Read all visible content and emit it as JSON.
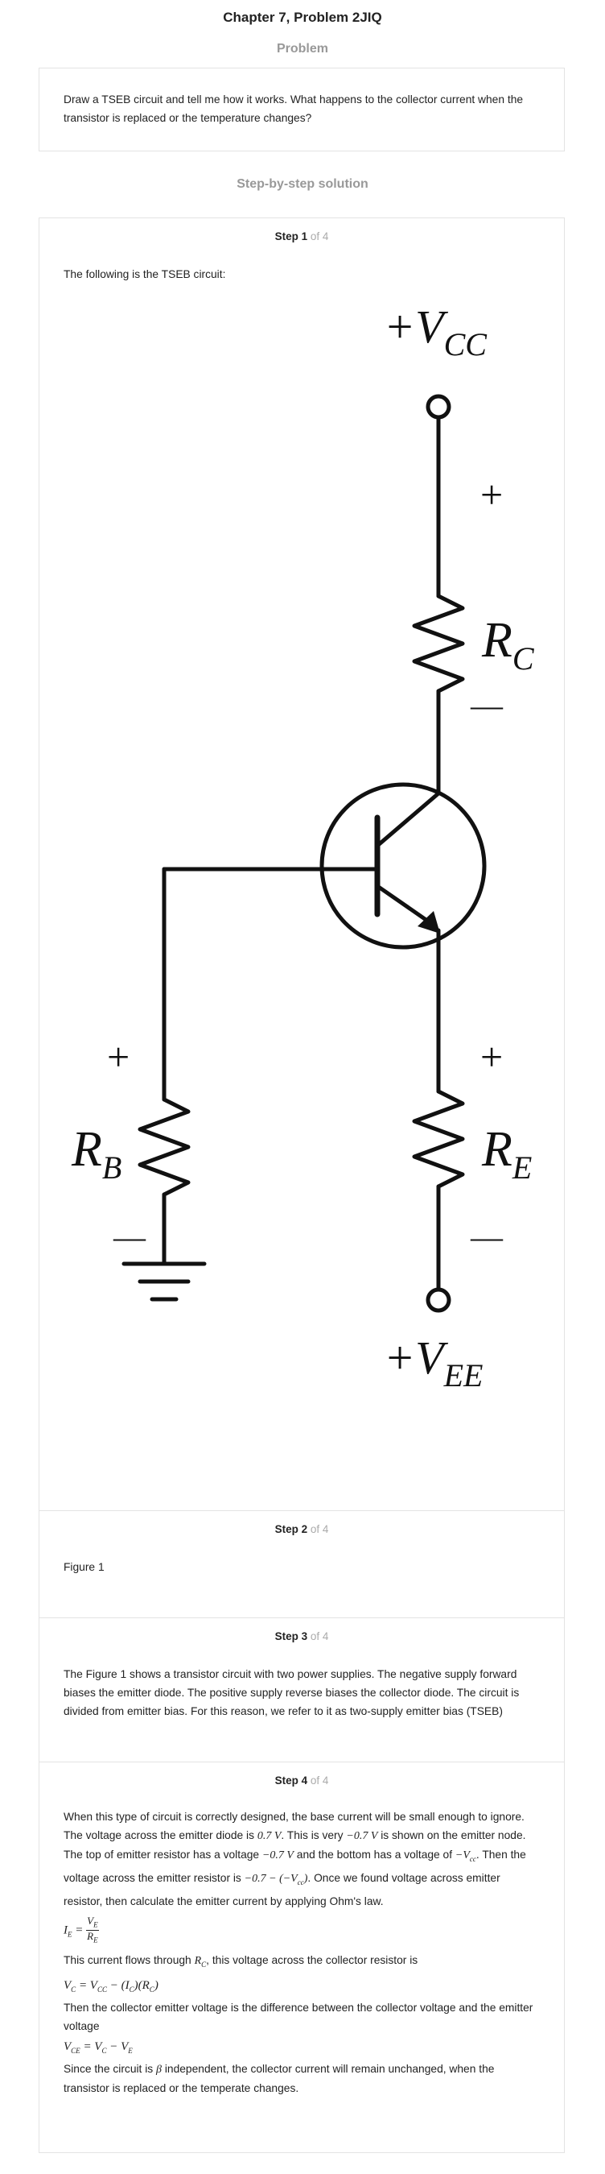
{
  "header": {
    "title": "Chapter 7, Problem 2JIQ"
  },
  "problem": {
    "heading": "Problem",
    "text": "Draw a TSEB circuit and tell me how it works. What happens to the collector current when the transistor is replaced or the temperature changes?"
  },
  "solution": {
    "heading": "Step-by-step solution"
  },
  "steps": [
    {
      "num": "Step 1",
      "of": "of 4",
      "text": "The following is the TSEB circuit:"
    },
    {
      "num": "Step 2",
      "of": "of 4",
      "text": "Figure 1"
    },
    {
      "num": "Step 3",
      "of": "of 4",
      "text": "The Figure 1 shows a transistor circuit with two power supplies. The negative supply forward biases the emitter diode. The positive supply reverse biases the collector diode. The circuit is divided from emitter bias. For this reason, we refer to it as two-supply emitter bias (TSEB)"
    },
    {
      "num": "Step 4",
      "of": "of 4",
      "p1a": "When this type of circuit is correctly designed, the base current will be small enough to ignore. The voltage across the emitter diode is ",
      "v07": "0.7 V",
      "p1b": ". This is very ",
      "vm07": "−0.7 V",
      "p1c": " is shown on the emitter node. The top of emitter resistor has a voltage ",
      "vm07b": "−0.7 V",
      "p1d": " and the bottom has a voltage of ",
      "vcc": "−V",
      "p1e": ". Then the voltage across the emitter resistor is ",
      "expr": "−0.7 − (−V",
      "p1f": ". Once we found voltage across emitter resistor, then calculate the emitter current by applying Ohm's law.",
      "p2a": "This current flows through ",
      "rc": "R",
      "p2b": ", this voltage across the collector resistor is",
      "p3": "Then the collector emitter voltage is the difference between the collector voltage and the emitter voltage",
      "p4a": "Since the circuit is ",
      "beta": "β",
      "p4b": " independent, the collector current will remain unchanged, when the transistor is replaced or the temperate changes."
    }
  ],
  "circuit": {
    "vcc_label": "+V",
    "vcc_sub": "CC",
    "vee_label": "+V",
    "vee_sub": "EE",
    "rc_label": "R",
    "rc_sub": "C",
    "re_label": "R",
    "re_sub": "E",
    "rb_label": "R",
    "rb_sub": "B",
    "plus": "+",
    "minus": "—"
  }
}
